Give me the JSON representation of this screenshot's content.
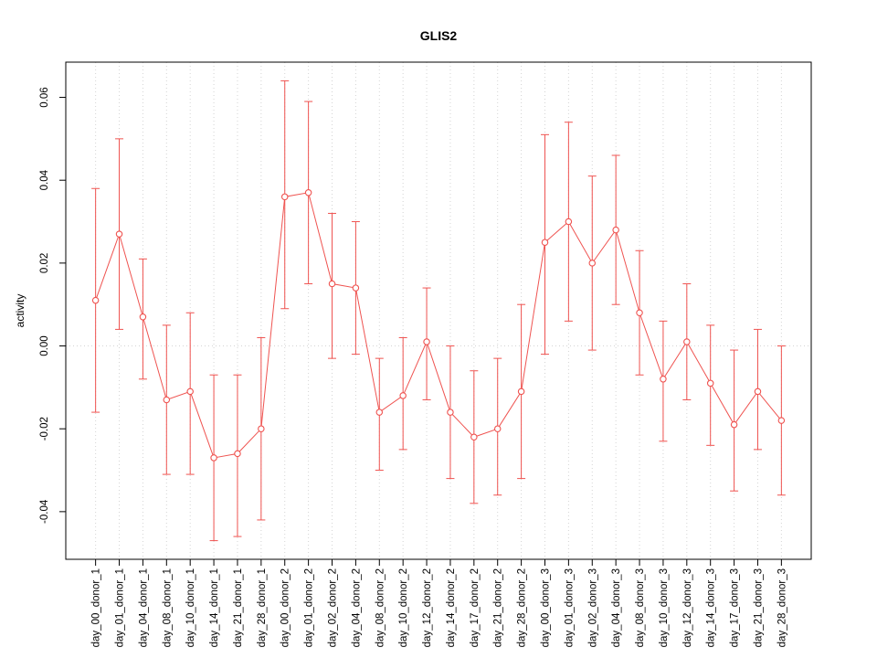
{
  "chart_data": {
    "type": "line",
    "title": "GLIS2",
    "xlabel": "",
    "ylabel": "activity",
    "legend_position": "none",
    "grid": "vertical-dotted-and-zero-line",
    "point_style": "open-circle",
    "error_bars": true,
    "series_color": "#ef5350",
    "grid_color": "#d4d4d4",
    "ylim": [
      -0.0515,
      0.0685
    ],
    "yticks": [
      -0.04,
      -0.02,
      0.0,
      0.02,
      0.04,
      0.06
    ],
    "ytick_labels": [
      "-0.04",
      "-0.02",
      "0.00",
      "0.02",
      "0.04",
      "0.06"
    ],
    "categories": [
      "day_00_donor_1",
      "day_01_donor_1",
      "day_04_donor_1",
      "day_08_donor_1",
      "day_10_donor_1",
      "day_14_donor_1",
      "day_21_donor_1",
      "day_28_donor_1",
      "day_00_donor_2",
      "day_01_donor_2",
      "day_02_donor_2",
      "day_04_donor_2",
      "day_08_donor_2",
      "day_10_donor_2",
      "day_12_donor_2",
      "day_14_donor_2",
      "day_17_donor_2",
      "day_21_donor_2",
      "day_28_donor_2",
      "day_00_donor_3",
      "day_01_donor_3",
      "day_02_donor_3",
      "day_04_donor_3",
      "day_08_donor_3",
      "day_10_donor_3",
      "day_12_donor_3",
      "day_14_donor_3",
      "day_17_donor_3",
      "day_21_donor_3",
      "day_28_donor_3"
    ],
    "values": [
      0.011,
      0.027,
      0.007,
      -0.013,
      -0.011,
      -0.027,
      -0.026,
      -0.02,
      0.036,
      0.037,
      0.015,
      0.014,
      -0.016,
      -0.012,
      0.001,
      -0.016,
      -0.022,
      -0.02,
      -0.011,
      0.025,
      0.03,
      0.02,
      0.028,
      0.008,
      -0.008,
      0.001,
      -0.009,
      -0.019,
      -0.011,
      -0.018
    ],
    "error_low": [
      -0.016,
      0.004,
      -0.008,
      -0.031,
      -0.031,
      -0.047,
      -0.046,
      -0.042,
      0.009,
      0.015,
      -0.003,
      -0.002,
      -0.03,
      -0.025,
      -0.013,
      -0.032,
      -0.038,
      -0.036,
      -0.032,
      -0.002,
      0.006,
      -0.001,
      0.01,
      -0.007,
      -0.023,
      -0.013,
      -0.024,
      -0.035,
      -0.025,
      -0.036
    ],
    "error_high": [
      0.038,
      0.05,
      0.021,
      0.005,
      0.008,
      -0.007,
      -0.007,
      0.002,
      0.064,
      0.059,
      0.032,
      0.03,
      -0.003,
      0.002,
      0.014,
      0.0,
      -0.006,
      -0.003,
      0.01,
      0.051,
      0.054,
      0.041,
      0.046,
      0.023,
      0.006,
      0.015,
      0.005,
      -0.001,
      0.004,
      0.0
    ]
  }
}
